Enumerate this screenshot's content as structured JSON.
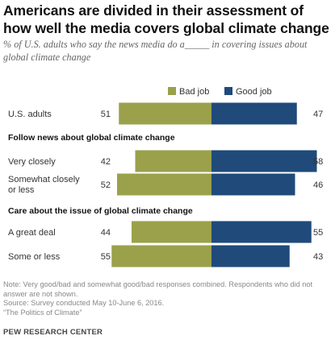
{
  "title": "Americans are divided in their assessment of how well the media covers global climate change",
  "subtitle": "% of U.S. adults who say the news media do a_____ in covering issues about global climate change",
  "colors": {
    "bad": "#9aa14a",
    "good": "#1f4a7a"
  },
  "chart_data": {
    "type": "bar",
    "orientation": "horizontal-diverging",
    "legend": {
      "position": "top",
      "entries": [
        "Bad job",
        "Good job"
      ]
    },
    "series": [
      {
        "name": "Bad job"
      },
      {
        "name": "Good job"
      }
    ],
    "groups": [
      {
        "heading": "",
        "rows": [
          {
            "label": "U.S. adults",
            "bad": 51,
            "good": 47
          }
        ]
      },
      {
        "heading": "Follow news about global climate change",
        "rows": [
          {
            "label": "Very closely",
            "bad": 42,
            "good": 58
          },
          {
            "label": "Somewhat closely or less",
            "bad": 52,
            "good": 46
          }
        ]
      },
      {
        "heading": "Care about the issue of global climate change",
        "rows": [
          {
            "label": "A great deal",
            "bad": 44,
            "good": 55
          },
          {
            "label": "Some or less",
            "bad": 55,
            "good": 43
          }
        ]
      }
    ]
  },
  "footer": {
    "note": "Note: Very good/bad and somewhat good/bad responses combined. Respondents who did not answer are not shown.",
    "source": "Source: Survey conducted May 10-June 6, 2016.",
    "report": "“The Politics of Climate”",
    "brand": "PEW RESEARCH CENTER"
  }
}
